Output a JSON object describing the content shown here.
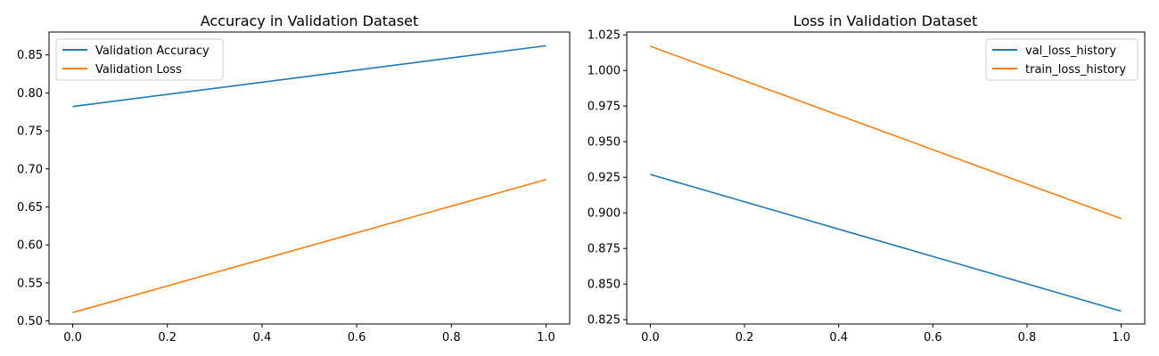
{
  "chart_data": [
    {
      "type": "line",
      "title": "Accuracy in Validation Dataset",
      "xlabel": "",
      "ylabel": "",
      "xlim": [
        -0.05,
        1.05
      ],
      "ylim": [
        0.496,
        0.88
      ],
      "xticks": [
        0.0,
        0.2,
        0.4,
        0.6,
        0.8,
        1.0
      ],
      "xtick_labels": [
        "0.0",
        "0.2",
        "0.4",
        "0.6",
        "0.8",
        "1.0"
      ],
      "yticks": [
        0.5,
        0.55,
        0.6,
        0.65,
        0.7,
        0.75,
        0.8,
        0.85
      ],
      "ytick_labels": [
        "0.50",
        "0.55",
        "0.60",
        "0.65",
        "0.70",
        "0.75",
        "0.80",
        "0.85"
      ],
      "grid": false,
      "legend": "upper-left",
      "series": [
        {
          "name": "Validation Accuracy",
          "color": "#1f77b4",
          "x": [
            0,
            1
          ],
          "y": [
            0.782,
            0.862
          ]
        },
        {
          "name": "Validation Loss",
          "color": "#ff7f0e",
          "x": [
            0,
            1
          ],
          "y": [
            0.511,
            0.686
          ]
        }
      ]
    },
    {
      "type": "line",
      "title": "Loss in Validation Dataset",
      "xlabel": "",
      "ylabel": "",
      "xlim": [
        -0.05,
        1.05
      ],
      "ylim": [
        0.822,
        1.027
      ],
      "xticks": [
        0.0,
        0.2,
        0.4,
        0.6,
        0.8,
        1.0
      ],
      "xtick_labels": [
        "0.0",
        "0.2",
        "0.4",
        "0.6",
        "0.8",
        "1.0"
      ],
      "yticks": [
        0.825,
        0.85,
        0.875,
        0.9,
        0.925,
        0.95,
        0.975,
        1.0,
        1.025
      ],
      "ytick_labels": [
        "0.825",
        "0.850",
        "0.875",
        "0.900",
        "0.925",
        "0.950",
        "0.975",
        "1.000",
        "1.025"
      ],
      "grid": false,
      "legend": "upper-right",
      "series": [
        {
          "name": "val_loss_history",
          "color": "#1f77b4",
          "x": [
            0,
            1
          ],
          "y": [
            0.927,
            0.831
          ]
        },
        {
          "name": "train_loss_history",
          "color": "#ff7f0e",
          "x": [
            0,
            1
          ],
          "y": [
            1.017,
            0.896
          ]
        }
      ]
    }
  ]
}
